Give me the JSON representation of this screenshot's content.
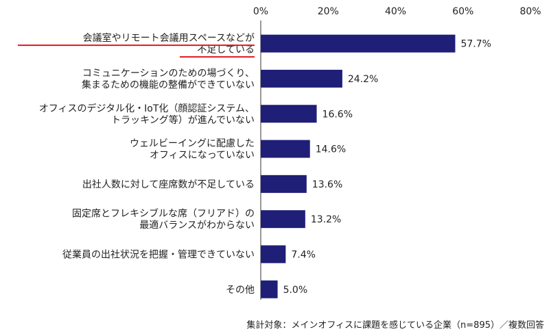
{
  "chart_data": {
    "type": "bar",
    "orientation": "horizontal",
    "categories": [
      [
        "会議室やリモート会議用スペースなどが",
        "不足している"
      ],
      [
        "コミュニケーションのための場づくり、",
        "集まるための機能の整備ができていない"
      ],
      [
        "オフィスのデジタル化・IoT化（顔認証システム、",
        "トラッキング等）が進んでいない"
      ],
      [
        "ウェルビーイングに配慮した",
        "オフィスになっていない"
      ],
      [
        "出社人数に対して座席数が不足している"
      ],
      [
        "固定席とフレキシブルな席（フリアド）の",
        "最適バランスがわからない"
      ],
      [
        "従業員の出社状況を把握・管理できていない"
      ],
      [
        "その他"
      ]
    ],
    "values": [
      57.7,
      24.2,
      16.6,
      14.6,
      13.6,
      13.2,
      7.4,
      5.0
    ],
    "value_labels": [
      "57.7%",
      "24.2%",
      "16.6%",
      "14.6%",
      "13.6%",
      "13.2%",
      "7.4%",
      "5.0%"
    ],
    "xlim": [
      0,
      80
    ],
    "xticks": [
      "0%",
      "20%",
      "40%",
      "60%",
      "80%"
    ],
    "xaxis_position": "top",
    "grid": false,
    "bar_color": "#1f1f78",
    "highlight_color": "#e0151b",
    "highlight_index": 0,
    "note": "集計対象：メインオフィスに課題を感じている企業（n=895）／複数回答"
  }
}
